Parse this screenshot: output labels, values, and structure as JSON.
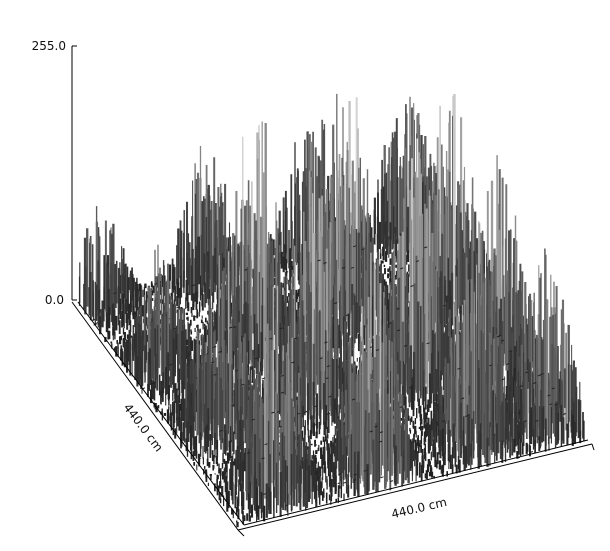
{
  "chart_data": {
    "type": "surface",
    "title": "",
    "zlim": [
      0.0,
      255.0
    ],
    "z_tick_labels": [
      "255.0",
      "0.0"
    ],
    "xlabel": "440.0 cm",
    "ylabel": "440.0 cm",
    "grid": false,
    "colormap": "grayscale",
    "background": "#ffffff",
    "axis_color": "#000000",
    "peaks": [
      {
        "x": 0.05,
        "y": 0.05,
        "z": 95
      },
      {
        "x": 0.35,
        "y": 0.05,
        "z": 130
      },
      {
        "x": 0.65,
        "y": 0.05,
        "z": 150
      },
      {
        "x": 0.92,
        "y": 0.05,
        "z": 140
      },
      {
        "x": 0.08,
        "y": 0.35,
        "z": 120
      },
      {
        "x": 0.35,
        "y": 0.35,
        "z": 245
      },
      {
        "x": 0.62,
        "y": 0.32,
        "z": 230
      },
      {
        "x": 0.9,
        "y": 0.35,
        "z": 215
      },
      {
        "x": 0.12,
        "y": 0.62,
        "z": 190
      },
      {
        "x": 0.4,
        "y": 0.6,
        "z": 235
      },
      {
        "x": 0.68,
        "y": 0.62,
        "z": 250
      },
      {
        "x": 0.9,
        "y": 0.65,
        "z": 200
      },
      {
        "x": 0.15,
        "y": 0.9,
        "z": 210
      },
      {
        "x": 0.42,
        "y": 0.92,
        "z": 230
      },
      {
        "x": 0.72,
        "y": 0.9,
        "z": 220
      },
      {
        "x": 0.92,
        "y": 0.9,
        "z": 170
      }
    ]
  }
}
